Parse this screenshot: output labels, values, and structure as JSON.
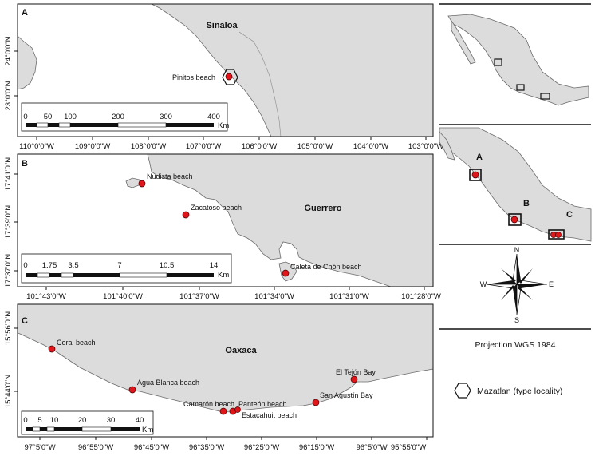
{
  "panels": [
    {
      "letter": "A",
      "region": "Sinaloa",
      "sites": [
        "Pinitos beach"
      ],
      "x_ticks": [
        "110°0'0\"W",
        "109°0'0\"W",
        "108°0'0\"W",
        "107°0'0\"W",
        "106°0'0\"W",
        "105°0'0\"W",
        "104°0'0\"W",
        "103°0'0\"W"
      ],
      "y_ticks": [
        "24°0'0\"N",
        "23°0'0\"N"
      ],
      "scale": {
        "ticks": [
          "0",
          "50",
          "100",
          "200",
          "300",
          "400"
        ],
        "unit": "Km"
      }
    },
    {
      "letter": "B",
      "region": "Guerrero",
      "sites": [
        "Nudista beach",
        "Zacatoso beach",
        "Caleta de Chón beach"
      ],
      "x_ticks": [
        "101°43'0\"W",
        "101°40'0\"W",
        "101°37'0\"W",
        "101°34'0\"W",
        "101°31'0\"W",
        "101°28'0\"W"
      ],
      "y_ticks": [
        "17°41'0\"N",
        "17°39'0\"N",
        "17°37'0\"N"
      ],
      "scale": {
        "ticks": [
          "0",
          "1.75",
          "3.5",
          "7",
          "10.5",
          "14"
        ],
        "unit": "Km"
      }
    },
    {
      "letter": "C",
      "region": "Oaxaca",
      "sites": [
        "Coral beach",
        "Agua Blanca beach",
        "Camarón beach",
        "Panteón beach",
        "Estacahuit beach",
        "San Agustín Bay",
        "El Tejón Bay"
      ],
      "x_ticks": [
        "97°5'0\"W",
        "96°55'0\"W",
        "96°45'0\"W",
        "96°35'0\"W",
        "96°25'0\"W",
        "96°15'0\"W",
        "96°5'0\"W",
        "95°55'0\"W"
      ],
      "y_ticks": [
        "15°56'0\"N",
        "15°44'0\"N"
      ],
      "scale": {
        "ticks": [
          "0",
          "5",
          "10",
          "20",
          "30",
          "40"
        ],
        "unit": "Km"
      }
    }
  ],
  "overview": {
    "letters": [
      "A",
      "B",
      "C"
    ],
    "compass": {
      "n": "N",
      "s": "S",
      "e": "E",
      "w": "W"
    }
  },
  "projection": "Projection WGS 1984",
  "legend": {
    "label": "Mazatlan (type locality)",
    "icon": "hexagon-icon"
  },
  "colors": {
    "land": "#dcdcdc",
    "site": "#e0161b",
    "coast": "#6b6b6b"
  }
}
